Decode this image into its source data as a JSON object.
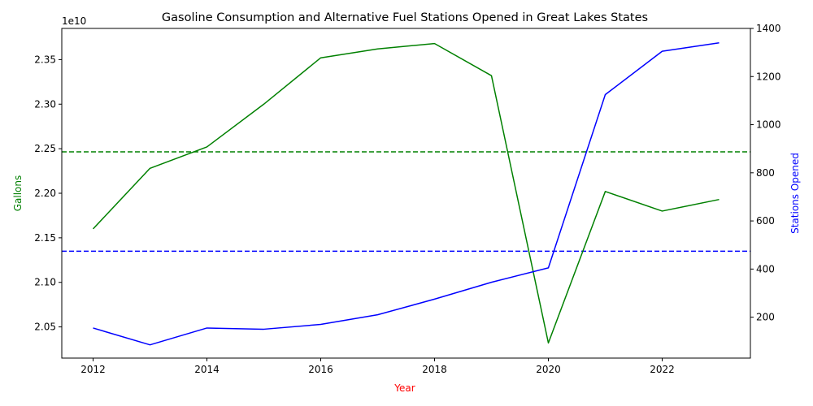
{
  "chart_data": {
    "type": "line",
    "title": "Gasoline Consumption and Alternative Fuel Stations Opened in Great Lakes States",
    "xlabel": "Year",
    "x": [
      2012,
      2013,
      2014,
      2015,
      2016,
      2017,
      2018,
      2019,
      2020,
      2021,
      2022,
      2023
    ],
    "x_ticks": [
      "2012",
      "2014",
      "2016",
      "2018",
      "2020",
      "2022"
    ],
    "xlim": [
      2011.45,
      2023.55
    ],
    "grid": false,
    "legend": "none",
    "left_axis": {
      "label": "Gallons",
      "offset_label": "1e10",
      "ylim": [
        20.15,
        23.85
      ],
      "ticks": [
        "2.05",
        "2.10",
        "2.15",
        "2.20",
        "2.25",
        "2.30",
        "2.35"
      ],
      "tick_values": [
        20.5,
        21.0,
        21.5,
        22.0,
        22.5,
        23.0,
        23.5
      ]
    },
    "right_axis": {
      "label": "Stations Opened",
      "ylim": [
        30,
        1400
      ],
      "ticks": [
        "200",
        "400",
        "600",
        "800",
        "1000",
        "1200",
        "1400"
      ],
      "tick_values": [
        200,
        400,
        600,
        800,
        1000,
        1200,
        1400
      ]
    },
    "series": [
      {
        "axis": "left",
        "color": "#008000",
        "values": [
          21.6,
          22.28,
          22.52,
          23.0,
          23.52,
          23.62,
          23.68,
          23.32,
          20.32,
          22.02,
          21.8,
          21.93
        ],
        "mean_line": 22.465
      },
      {
        "axis": "right",
        "color": "#0000ff",
        "values": [
          155,
          85,
          155,
          150,
          170,
          210,
          275,
          345,
          405,
          1125,
          1305,
          1340
        ],
        "mean_line": 474
      }
    ],
    "colors": {
      "xlabel": "#ff0000",
      "left_label": "#008000",
      "right_label": "#0000ff"
    }
  }
}
